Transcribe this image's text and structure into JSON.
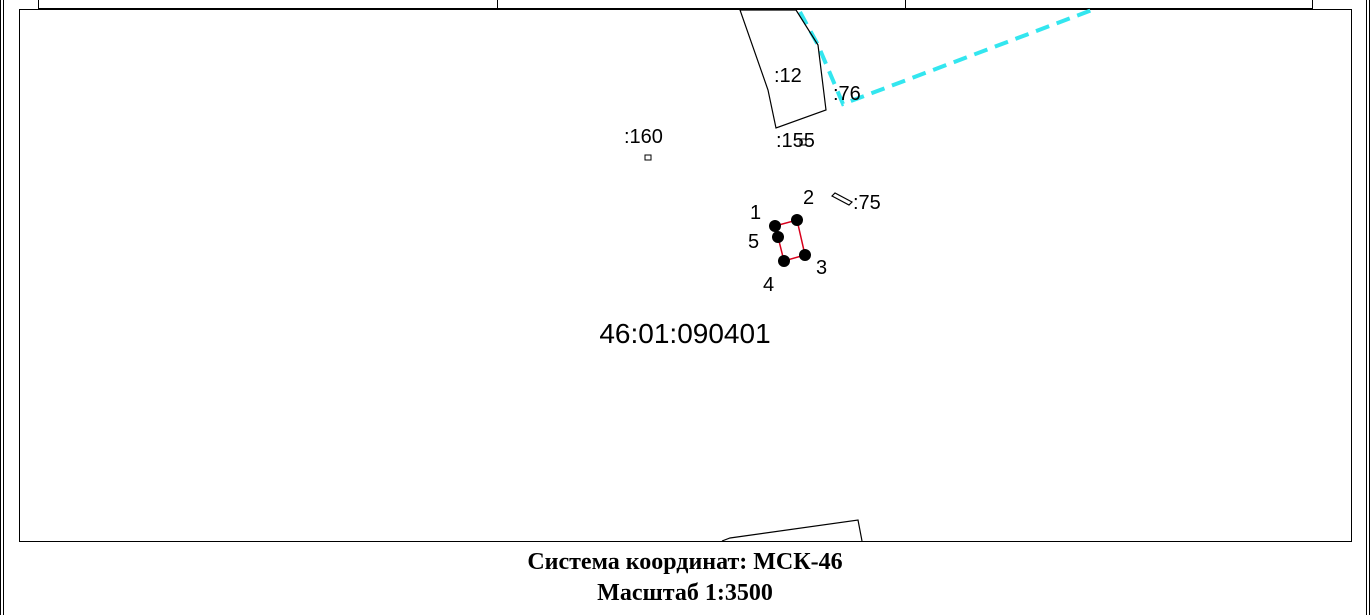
{
  "map": {
    "parcel_labels": {
      "p12": ":12",
      "p76": ":76",
      "p160": ":160",
      "p155": ":155",
      "p75": ":75"
    },
    "point_labels": {
      "n1": "1",
      "n2": "2",
      "n3": "3",
      "n4": "4",
      "n5": "5"
    },
    "cadastral_block": "46:01:090401",
    "colors": {
      "boundary_dashed": "#33e6ef",
      "parcel_outline": "#000000",
      "target_parcel": "#d8001c",
      "point_marker": "#000000"
    }
  },
  "caption": {
    "coordinate_system": "Система координат: МСК-46",
    "scale": "Масштаб 1:3500"
  }
}
